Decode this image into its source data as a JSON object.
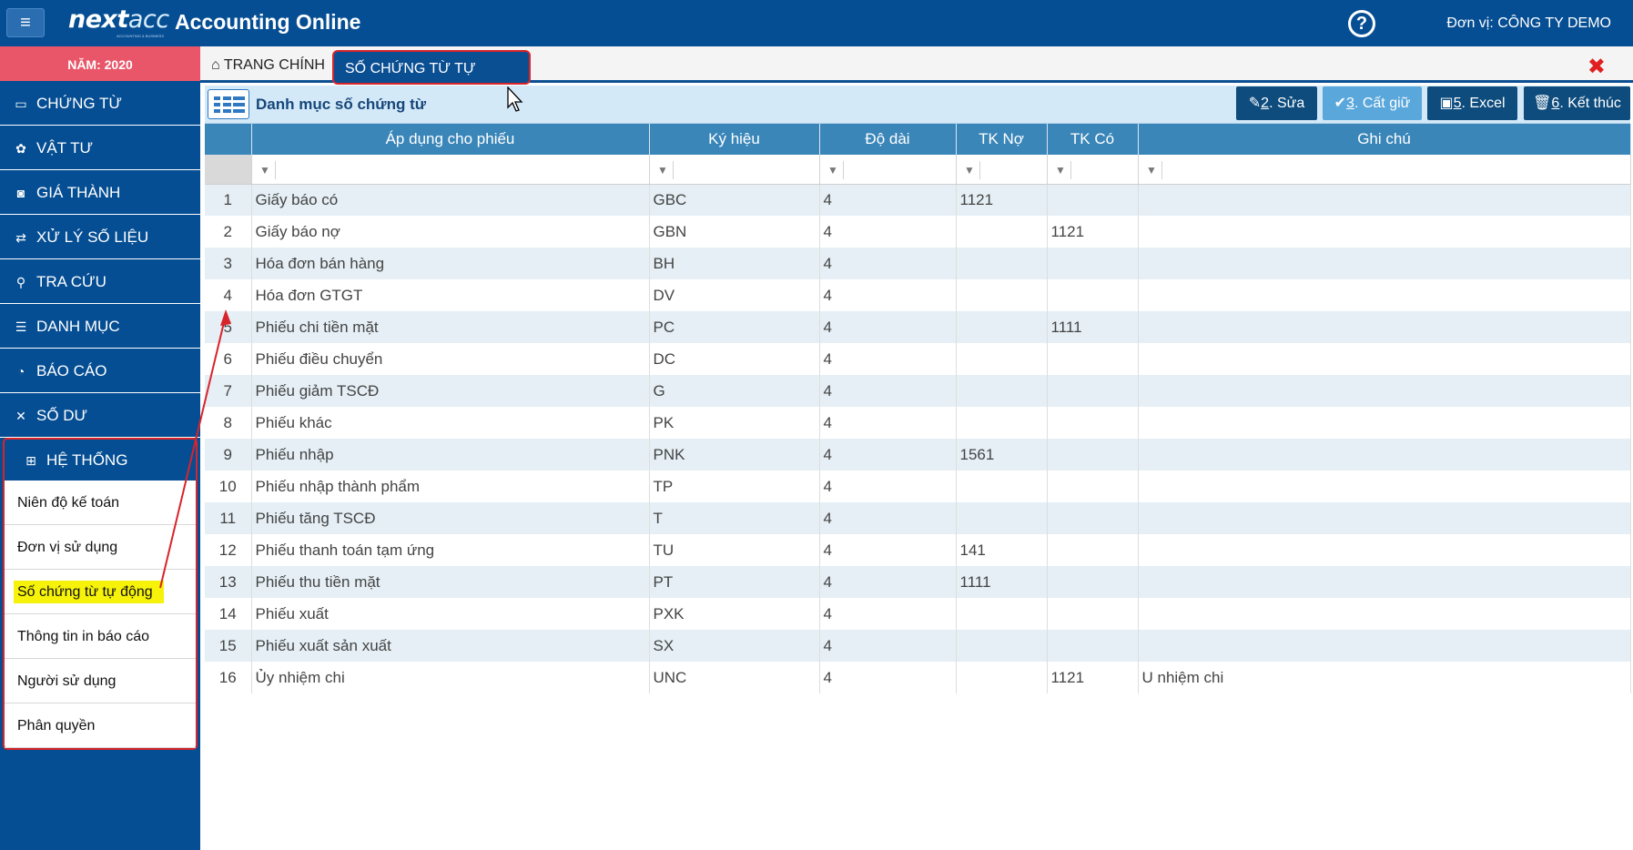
{
  "header": {
    "menu_icon": "hamburger-icon",
    "logo_main": "next",
    "logo_accent": "acc",
    "logo_sub": "ACCOUNTING & BUSINESS",
    "app_title": "Accounting Online",
    "help_icon": "?",
    "unit_label": "Đơn vị: CÔNG TY DEMO"
  },
  "sidebar": {
    "year": "NĂM: 2020",
    "items": [
      {
        "label": "CHỨNG TỪ",
        "icon": "▭"
      },
      {
        "label": "VẬT TƯ",
        "icon": "✿"
      },
      {
        "label": "GIÁ THÀNH",
        "icon": "◙"
      },
      {
        "label": "XỬ LÝ SỐ LIỆU",
        "icon": "⇄"
      },
      {
        "label": "TRA CỨU",
        "icon": "⚲"
      },
      {
        "label": "DANH MỤC",
        "icon": "☰"
      },
      {
        "label": "BÁO CÁO",
        "icon": "◔"
      },
      {
        "label": "SỐ DƯ",
        "icon": "✕"
      },
      {
        "label": "HỆ THỐNG",
        "icon": "⊞"
      }
    ],
    "submenu": [
      "Niên độ kế toán",
      "Đơn vị sử dụng",
      "Số chứng từ tự động",
      "Thông tin in báo cáo",
      "Người sử dụng",
      "Phân quyền"
    ]
  },
  "tabs": {
    "home_icon": "⌂",
    "home_label": "TRANG CHÍNH",
    "active_label": "SỐ CHỨNG TỪ TỰ ĐỘNG",
    "active_close": "X",
    "close_all": "✖"
  },
  "toolbar": {
    "title": "Danh mục số chứng từ",
    "edit": {
      "icon": "✎",
      "key": "2",
      "label": ". Sửa"
    },
    "save": {
      "icon": "✔",
      "key": "3",
      "label": ". Cất giữ"
    },
    "excel": {
      "icon": "▣",
      "key": "5",
      "label": ". Excel"
    },
    "exit": {
      "icon": "🗑",
      "key": "6",
      "label": ". Kết thúc"
    }
  },
  "grid": {
    "columns": [
      "Áp dụng cho phiếu",
      "Ký hiệu",
      "Độ dài",
      "TK Nợ",
      "TK Có",
      "Ghi chú"
    ],
    "filter_icon": "▼",
    "rows": [
      [
        "1",
        "Giấy báo có",
        "GBC",
        "4",
        "1121",
        "",
        ""
      ],
      [
        "2",
        "Giấy báo nợ",
        "GBN",
        "4",
        "",
        "1121",
        ""
      ],
      [
        "3",
        "Hóa đơn bán hàng",
        "BH",
        "4",
        "",
        "",
        ""
      ],
      [
        "4",
        "Hóa đơn GTGT",
        "DV",
        "4",
        "",
        "",
        ""
      ],
      [
        "5",
        "Phiếu chi tiền mặt",
        "PC",
        "4",
        "",
        "1111",
        ""
      ],
      [
        "6",
        "Phiếu điều chuyển",
        "DC",
        "4",
        "",
        "",
        ""
      ],
      [
        "7",
        "Phiếu giảm TSCĐ",
        "G",
        "4",
        "",
        "",
        ""
      ],
      [
        "8",
        "Phiếu khác",
        "PK",
        "4",
        "",
        "",
        ""
      ],
      [
        "9",
        "Phiếu nhập",
        "PNK",
        "4",
        "1561",
        "",
        ""
      ],
      [
        "10",
        "Phiếu nhập thành phẩm",
        "TP",
        "4",
        "",
        "",
        ""
      ],
      [
        "11",
        "Phiếu tăng TSCĐ",
        "T",
        "4",
        "",
        "",
        ""
      ],
      [
        "12",
        "Phiếu thanh toán tạm ứng",
        "TU",
        "4",
        "141",
        "",
        ""
      ],
      [
        "13",
        "Phiếu thu tiền mặt",
        "PT",
        "4",
        "1111",
        "",
        ""
      ],
      [
        "14",
        "Phiếu xuất",
        "PXK",
        "4",
        "",
        "",
        ""
      ],
      [
        "15",
        "Phiếu xuất sản xuất",
        "SX",
        "4",
        "",
        "",
        ""
      ],
      [
        "16",
        "Ủy nhiệm chi",
        "UNC",
        "4",
        "",
        "1121",
        "U nhiệm chi"
      ]
    ]
  },
  "colors": {
    "header_bg": "#054e93",
    "year_bg": "#e9566a",
    "grid_header": "#3a86b9",
    "highlight": "#f6f20a",
    "annotation": "#d8242b"
  }
}
